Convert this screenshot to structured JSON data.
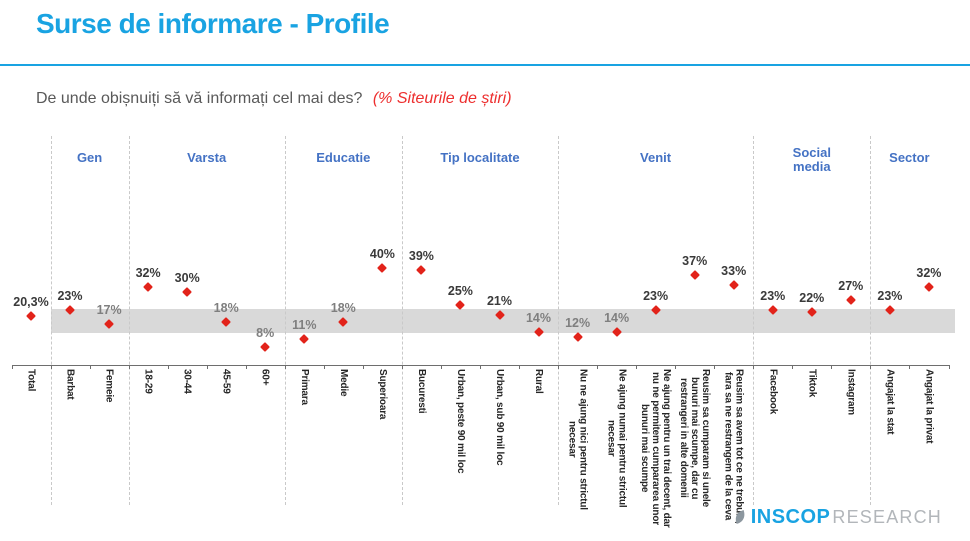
{
  "slide": {
    "title": "Surse de informare - Profile",
    "question": "De unde obișnuiți să vă informați cel mai des?",
    "question_highlight": "(% Siteurile de știri)"
  },
  "logo": {
    "brand": "INSCOP",
    "suffix": "RESEARCH",
    "icon": "leaf-icon"
  },
  "colors": {
    "accent_blue": "#19A3E2",
    "group_header_blue": "#4472C4",
    "marker_red": "#E2231A",
    "band_gray": "#D9D9D9",
    "axis_gray": "#6E6E6E",
    "separator_gray": "#C9C9C9",
    "value_label_dark": "#3A3A3A",
    "value_label_muted": "#7F7F7F",
    "category_label": "#262626",
    "question_gray": "#595959",
    "question_red": "#ED2E2E",
    "logo_gray": "#B2B6BA",
    "leaf_gray": "#8C979F"
  },
  "chart_data": {
    "type": "scatter",
    "marker": "diamond",
    "title": "De unde obișnuiți să vă informați cel mai des? (% Siteurile de știri)",
    "ylim": [
      0,
      45
    ],
    "grid": false,
    "highlight_band": {
      "from": 13.5,
      "to": 23.2
    },
    "groups": [
      {
        "label": "Gen",
        "start": 1,
        "end": 2
      },
      {
        "label": "Varsta",
        "start": 3,
        "end": 6
      },
      {
        "label": "Educatie",
        "start": 7,
        "end": 9
      },
      {
        "label": "Tip localitate",
        "start": 10,
        "end": 13
      },
      {
        "label": "Venit",
        "start": 14,
        "end": 18
      },
      {
        "label": "Social\nmedia",
        "start": 19,
        "end": 21
      },
      {
        "label": "Sector",
        "start": 22,
        "end": 23
      }
    ],
    "points": [
      {
        "label": "Total",
        "value": 20.3,
        "display": "20,3%",
        "muted": false
      },
      {
        "label": "Barbat",
        "value": 23,
        "display": "23%",
        "muted": false
      },
      {
        "label": "Femeie",
        "value": 17,
        "display": "17%",
        "muted": true
      },
      {
        "label": "18-29",
        "value": 32,
        "display": "32%",
        "muted": false
      },
      {
        "label": "30-44",
        "value": 30,
        "display": "30%",
        "muted": false
      },
      {
        "label": "45-59",
        "value": 18,
        "display": "18%",
        "muted": true
      },
      {
        "label": "60+",
        "value": 8,
        "display": "8%",
        "muted": true
      },
      {
        "label": "Primara",
        "value": 11,
        "display": "11%",
        "muted": true
      },
      {
        "label": "Medie",
        "value": 18,
        "display": "18%",
        "muted": true
      },
      {
        "label": "Superioara",
        "value": 40,
        "display": "40%",
        "muted": false
      },
      {
        "label": "Bucuresti",
        "value": 39,
        "display": "39%",
        "muted": false
      },
      {
        "label": "Urban, peste 90 mil loc",
        "value": 25,
        "display": "25%",
        "muted": false
      },
      {
        "label": "Urban, sub 90 mil loc",
        "value": 21,
        "display": "21%",
        "muted": false
      },
      {
        "label": "Rural",
        "value": 14,
        "display": "14%",
        "muted": true
      },
      {
        "label": "Nu ne ajung nici pentru strictul\nnecesar",
        "value": 12,
        "display": "12%",
        "muted": true
      },
      {
        "label": "Ne ajung numai pentru strictul\nnecesar",
        "value": 14,
        "display": "14%",
        "muted": true
      },
      {
        "label": "Ne ajung pentru un trai decent, dar\nnu ne permitem cumpararea unor\nbunuri mai scumpe",
        "value": 23,
        "display": "23%",
        "muted": false
      },
      {
        "label": "Reusim sa cumparam si unele\nbunuri mai scumpe, dar cu\nrestrangeri in alte domenii",
        "value": 37,
        "display": "37%",
        "muted": false
      },
      {
        "label": "Reusim sa avem tot ce ne trebuie,\nfara sa ne restrangem de la ceva",
        "value": 33,
        "display": "33%",
        "muted": false
      },
      {
        "label": "Facebook",
        "value": 23,
        "display": "23%",
        "muted": false
      },
      {
        "label": "Tiktok",
        "value": 22,
        "display": "22%",
        "muted": false
      },
      {
        "label": "Instagram",
        "value": 27,
        "display": "27%",
        "muted": false
      },
      {
        "label": "Angajat la stat",
        "value": 23,
        "display": "23%",
        "muted": false
      },
      {
        "label": "Angajat la privat",
        "value": 32,
        "display": "32%",
        "muted": false
      }
    ]
  }
}
